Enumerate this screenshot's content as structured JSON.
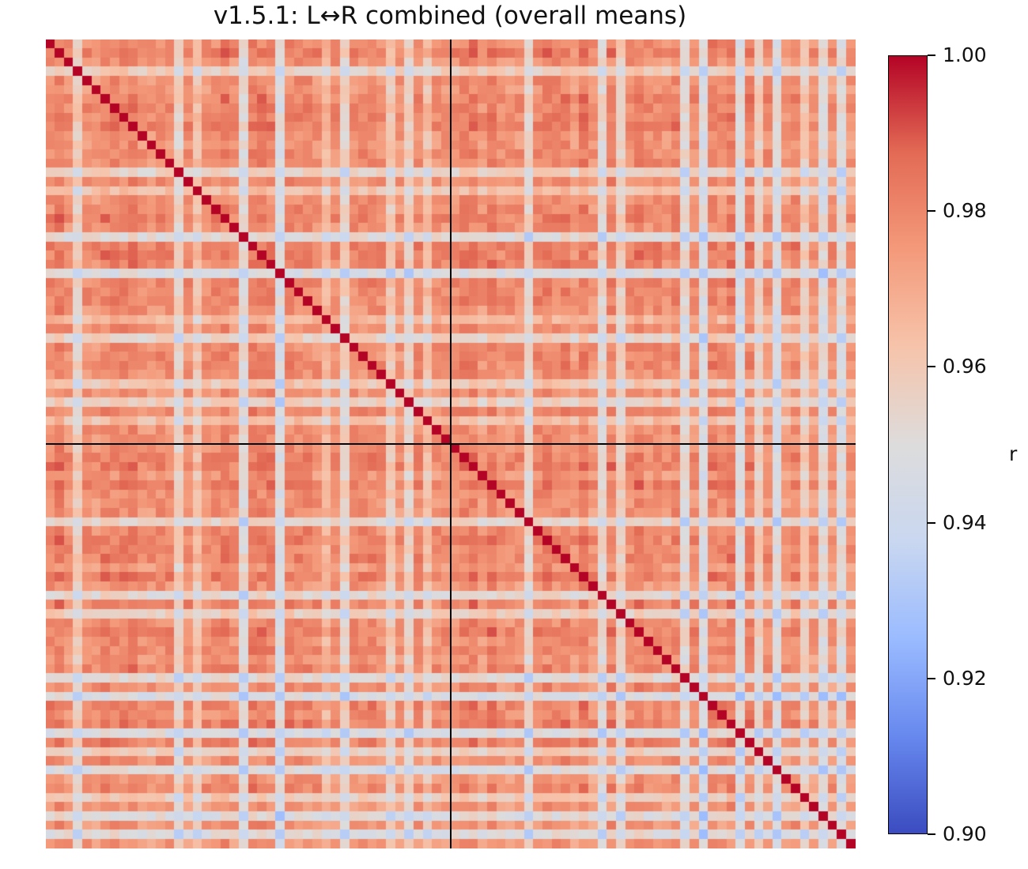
{
  "chart_data": {
    "type": "heatmap",
    "title": "v1.5.1: L↔R combined (overall means)",
    "n_rows": 88,
    "n_cols": 88,
    "block_split_index": 44,
    "diagonal_value": 1.0,
    "vmin": 0.9,
    "vmax": 1.0,
    "typical_offdiagonal_mean": 0.975,
    "weak_rows_cols": [
      3,
      14,
      16,
      21,
      25,
      30,
      32,
      37,
      39,
      41,
      52,
      60,
      62,
      69,
      71,
      75,
      77,
      79,
      82,
      84,
      86
    ],
    "colormap": "coolwarm",
    "colormap_stops": [
      "#3b4cc0",
      "#6788ee",
      "#9abbff",
      "#c9d7f0",
      "#dddcdc",
      "#f6c4ab",
      "#f49a7b",
      "#e36b55",
      "#b40426"
    ],
    "colorbar": {
      "label": "r",
      "ticks": [
        {
          "value": 1.0,
          "label": "1.00"
        },
        {
          "value": 0.98,
          "label": "0.98"
        },
        {
          "value": 0.96,
          "label": "0.96"
        },
        {
          "value": 0.94,
          "label": "0.94"
        },
        {
          "value": 0.92,
          "label": "0.92"
        },
        {
          "value": 0.9,
          "label": "0.90"
        }
      ]
    }
  }
}
